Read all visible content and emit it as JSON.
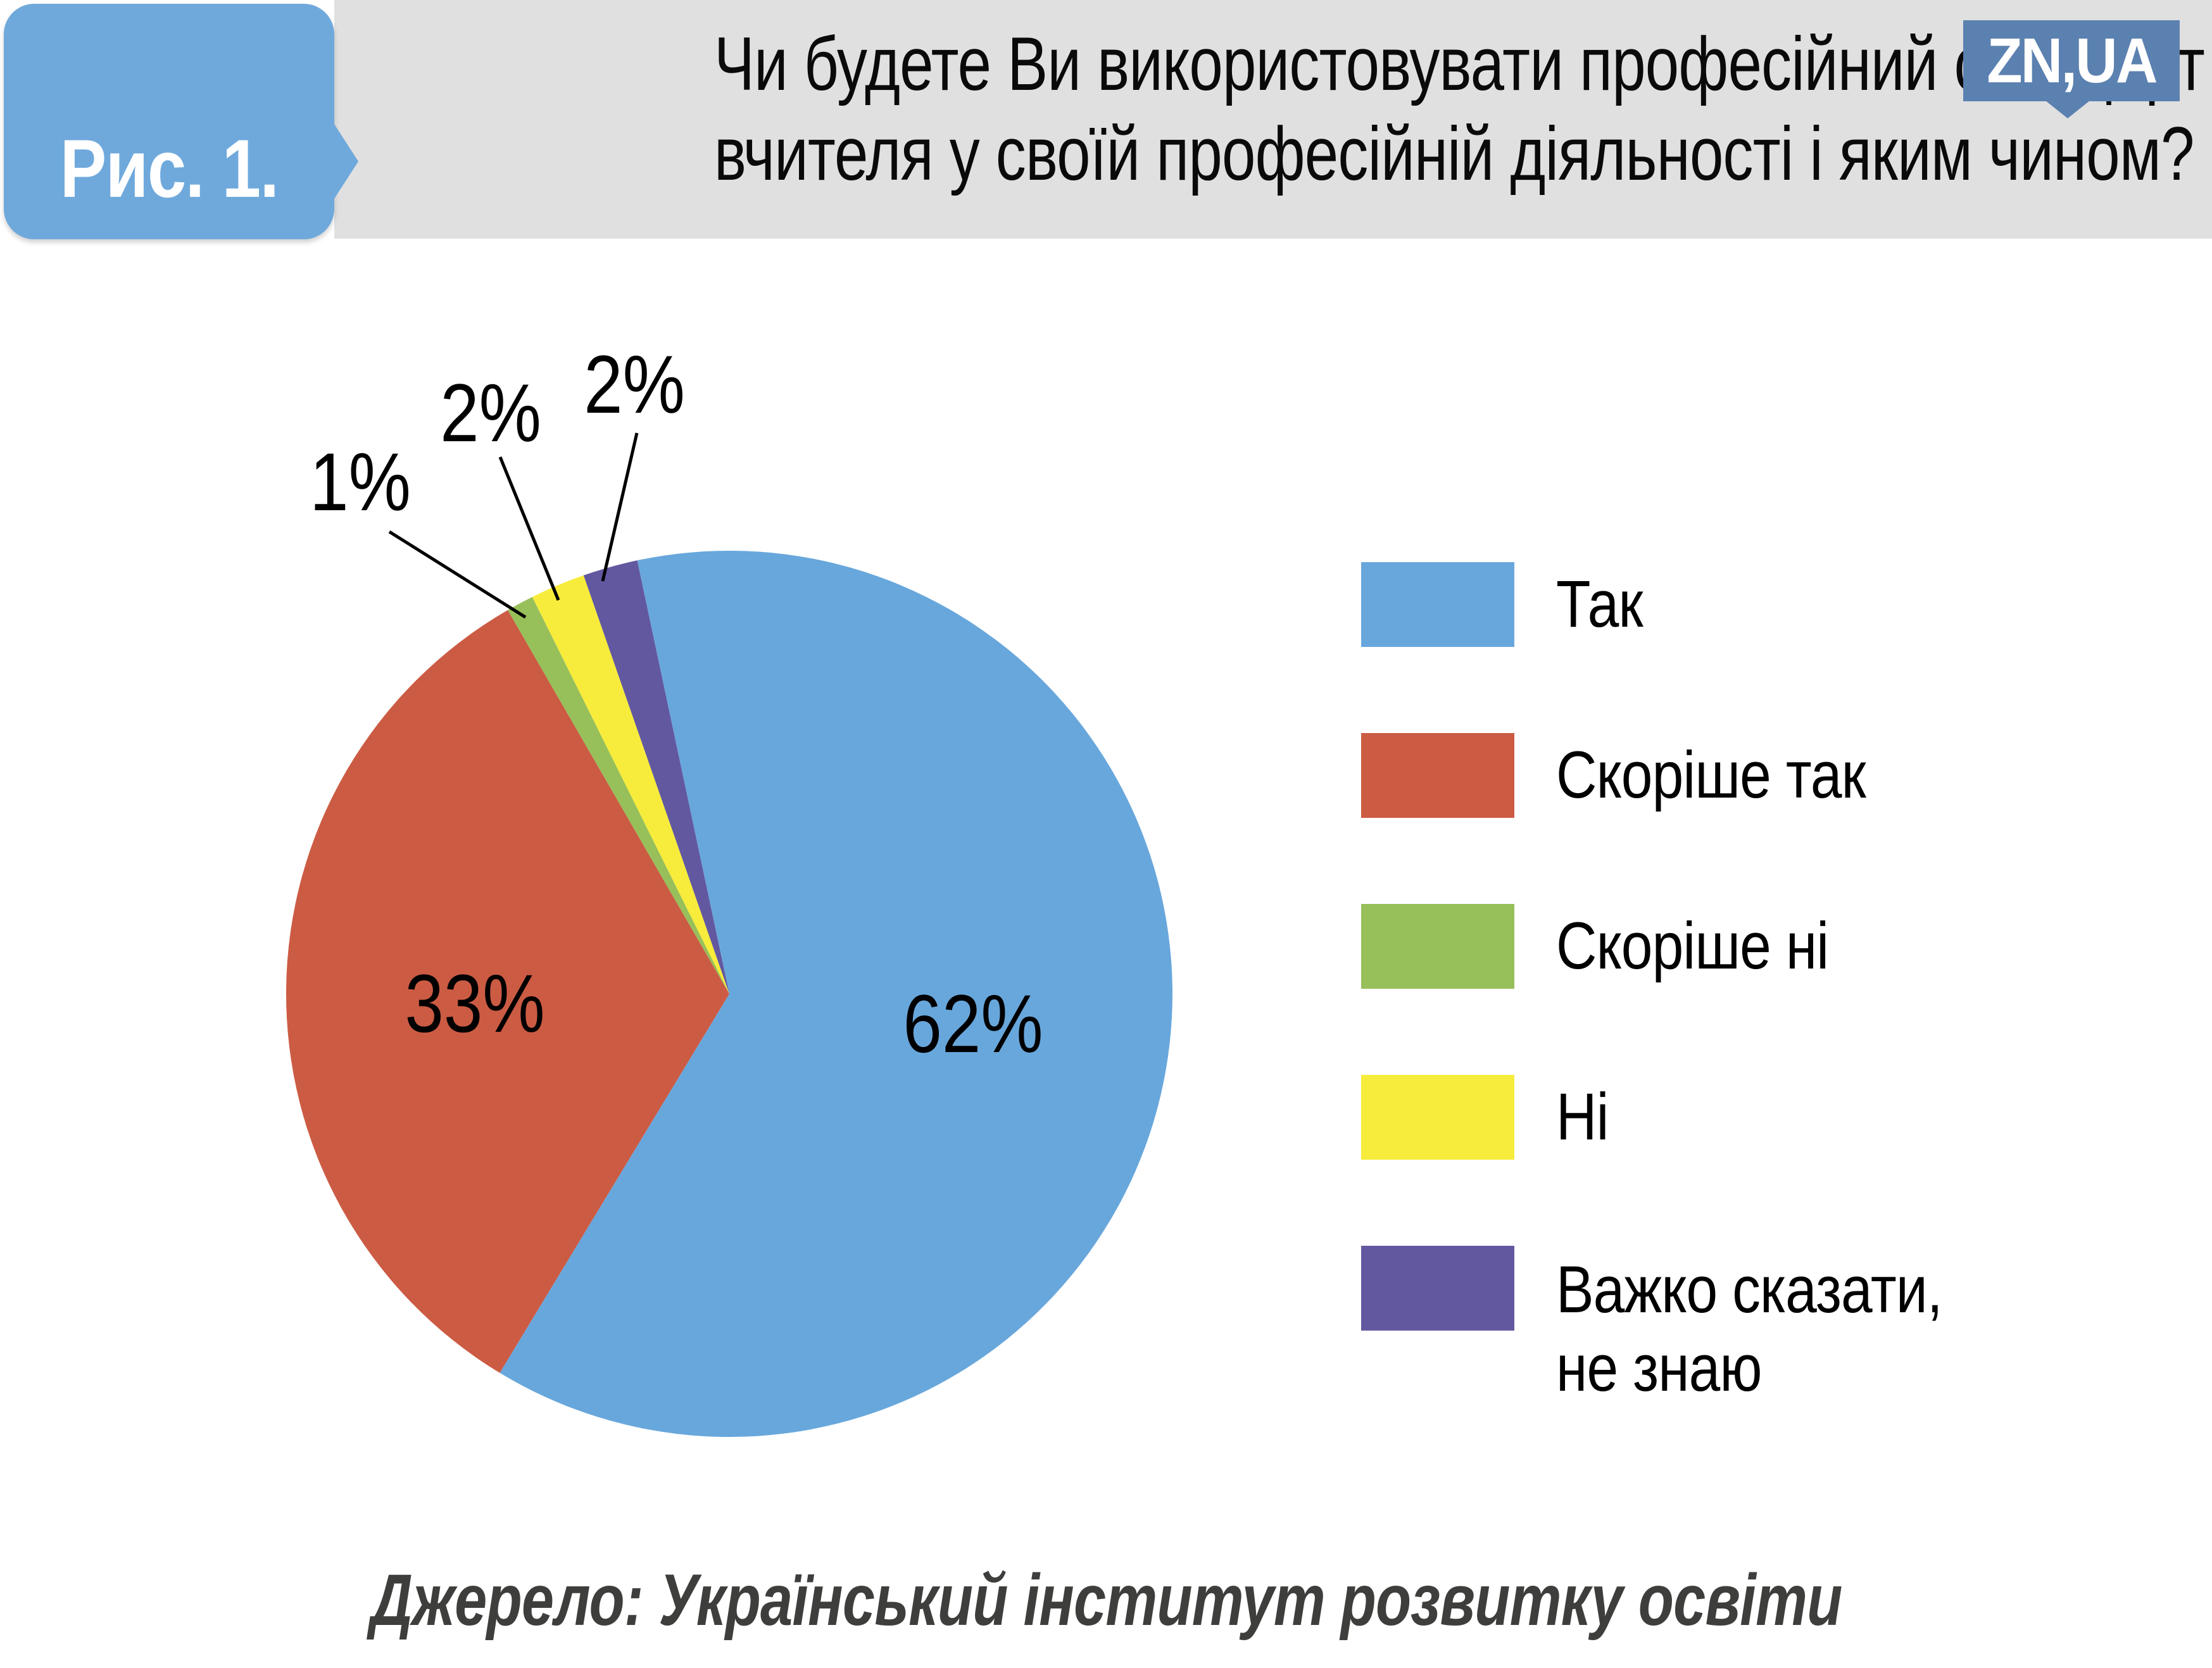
{
  "figure_badge": {
    "label": "Рис. 1."
  },
  "header": {
    "title_lines": [
      "Чи будете Ви використовувати професійний стандарт",
      "вчителя у своїй професійній діяльності і яким чином?"
    ]
  },
  "logo": {
    "text": "ZN,UA"
  },
  "chart_data": {
    "type": "pie",
    "title": "Чи будете Ви використовувати професійний стандарт вчителя у своїй професійній діяльності і яким чином?",
    "legend_position": "right",
    "start_angle_deg": -12,
    "direction": "clockwise",
    "slices": [
      {
        "label": "Так",
        "value": 62,
        "pct_label": "62%",
        "color": "#68a7dc"
      },
      {
        "label": "Скоріше так",
        "value": 33,
        "pct_label": "33%",
        "color": "#cc5b43"
      },
      {
        "label": "Скоріше ні",
        "value": 1,
        "pct_label": "1%",
        "color": "#97bf5a"
      },
      {
        "label": "Ні",
        "value": 2,
        "pct_label": "2%",
        "color": "#f7ec3b"
      },
      {
        "label": "Важко сказати, не знаю",
        "value": 2,
        "pct_label": "2%",
        "color": "#6258a0"
      }
    ]
  },
  "legend": {
    "items": [
      {
        "label_lines": [
          "Так"
        ],
        "color": "#68a7dc"
      },
      {
        "label_lines": [
          "Скоріше так"
        ],
        "color": "#cc5b43"
      },
      {
        "label_lines": [
          "Скоріше ні"
        ],
        "color": "#97bf5a"
      },
      {
        "label_lines": [
          "Ні"
        ],
        "color": "#f7ec3b"
      },
      {
        "label_lines": [
          "Важко сказати,",
          "не знаю"
        ],
        "color": "#6258a0"
      }
    ]
  },
  "source": {
    "text": "Джерело: Український інститут розвитку освіти"
  }
}
